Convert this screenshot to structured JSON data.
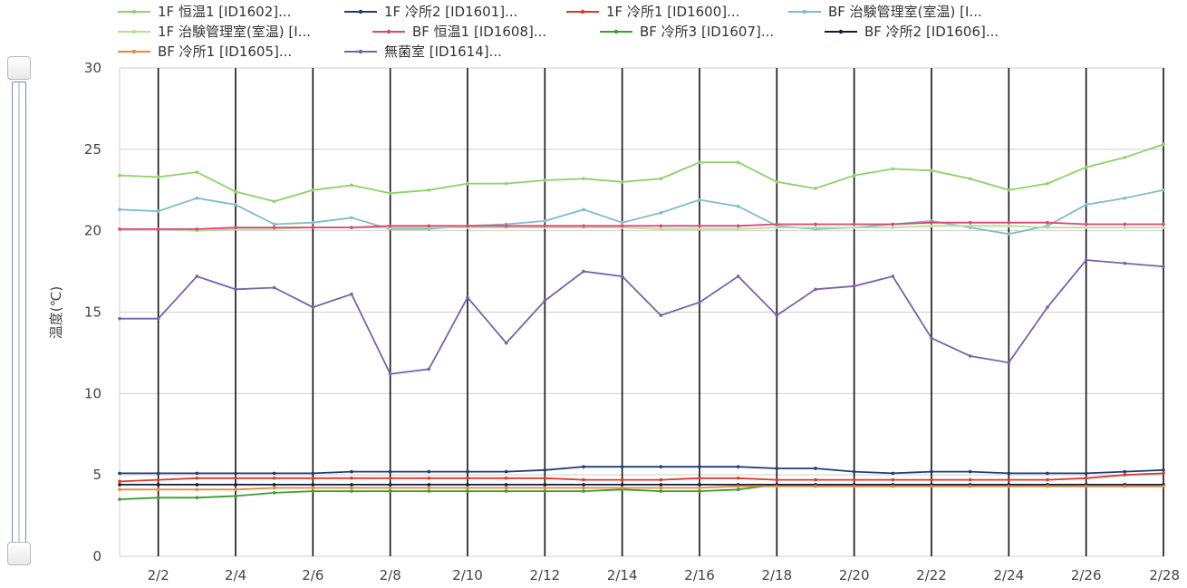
{
  "slider": {
    "start_fraction": 0,
    "end_fraction": 1
  },
  "chart_data": {
    "type": "line",
    "ylabel": "温度(℃)",
    "xlabel": "",
    "ylim": [
      0,
      30
    ],
    "yticks": [
      0,
      5,
      10,
      15,
      20,
      25,
      30
    ],
    "x": [
      "2/1",
      "2/2",
      "2/3",
      "2/4",
      "2/5",
      "2/6",
      "2/7",
      "2/8",
      "2/9",
      "2/10",
      "2/11",
      "2/12",
      "2/13",
      "2/14",
      "2/15",
      "2/16",
      "2/17",
      "2/18",
      "2/19",
      "2/20",
      "2/21",
      "2/22",
      "2/23",
      "2/24",
      "2/25",
      "2/26",
      "2/27",
      "2/28"
    ],
    "xtick_labels": [
      "2/2",
      "2/4",
      "2/6",
      "2/8",
      "2/10",
      "2/12",
      "2/14",
      "2/16",
      "2/18",
      "2/20",
      "2/22",
      "2/24",
      "2/26",
      "2/28"
    ],
    "grid": {
      "vertical": true,
      "horizontal": true
    },
    "legend": "top",
    "series": [
      {
        "name": "1F 恒温1 [ID1602]...",
        "color": "#8ed16a",
        "values": [
          23.4,
          23.3,
          23.6,
          22.4,
          21.8,
          22.5,
          22.8,
          22.3,
          22.5,
          22.9,
          22.9,
          23.1,
          23.2,
          23.0,
          23.2,
          24.2,
          24.2,
          23.0,
          22.6,
          23.4,
          23.8,
          23.7,
          23.2,
          22.5,
          22.9,
          23.9,
          24.5,
          25.3
        ]
      },
      {
        "name": "1F 冷所2 [ID1601]...",
        "color": "#1f3c7a",
        "values": [
          5.1,
          5.1,
          5.1,
          5.1,
          5.1,
          5.1,
          5.2,
          5.2,
          5.2,
          5.2,
          5.2,
          5.3,
          5.5,
          5.5,
          5.5,
          5.5,
          5.5,
          5.4,
          5.4,
          5.2,
          5.1,
          5.2,
          5.2,
          5.1,
          5.1,
          5.1,
          5.2,
          5.3
        ]
      },
      {
        "name": "1F 冷所1 [ID1600]...",
        "color": "#d93a2b",
        "values": [
          4.6,
          4.7,
          4.8,
          4.8,
          4.8,
          4.8,
          4.8,
          4.8,
          4.8,
          4.8,
          4.8,
          4.8,
          4.7,
          4.7,
          4.7,
          4.8,
          4.8,
          4.7,
          4.7,
          4.7,
          4.7,
          4.7,
          4.7,
          4.7,
          4.7,
          4.8,
          5.0,
          5.1
        ]
      },
      {
        "name": "BF 治験管理室(室温) [I...",
        "color": "#7fbcc8",
        "values": [
          21.3,
          21.2,
          22.0,
          21.6,
          20.4,
          20.5,
          20.8,
          20.1,
          20.1,
          20.3,
          20.4,
          20.6,
          21.3,
          20.5,
          21.1,
          21.9,
          21.5,
          20.3,
          20.1,
          20.2,
          20.4,
          20.6,
          20.2,
          19.8,
          20.3,
          21.6,
          22.0,
          22.5
        ]
      },
      {
        "name": "1F 治験管理室(室温) [I...",
        "color": "#b7e08f",
        "values": [
          20.1,
          20.1,
          20.0,
          20.1,
          20.1,
          20.2,
          20.2,
          20.2,
          20.2,
          20.2,
          20.2,
          20.2,
          20.2,
          20.2,
          20.1,
          20.1,
          20.1,
          20.2,
          20.2,
          20.2,
          20.2,
          20.3,
          20.3,
          20.3,
          20.2,
          20.2,
          20.2,
          20.2
        ]
      },
      {
        "name": "BF 恒温1 [ID1608]...",
        "color": "#e0427a",
        "values": [
          20.1,
          20.1,
          20.1,
          20.2,
          20.2,
          20.2,
          20.2,
          20.3,
          20.3,
          20.3,
          20.3,
          20.3,
          20.3,
          20.3,
          20.3,
          20.3,
          20.3,
          20.4,
          20.4,
          20.4,
          20.4,
          20.5,
          20.5,
          20.5,
          20.5,
          20.4,
          20.4,
          20.4
        ]
      },
      {
        "name": "BF 冷所3 [ID1607]...",
        "color": "#3a9e2c",
        "values": [
          3.5,
          3.6,
          3.6,
          3.7,
          3.9,
          4.0,
          4.0,
          4.0,
          4.0,
          4.0,
          4.0,
          4.0,
          4.0,
          4.1,
          4.0,
          4.0,
          4.1,
          4.4,
          4.3,
          4.3,
          4.3,
          4.3,
          4.3,
          4.3,
          4.3,
          4.3,
          4.3,
          4.3
        ]
      },
      {
        "name": "BF 冷所2 [ID1606]...",
        "color": "#101c3d",
        "values": [
          4.4,
          4.4,
          4.4,
          4.4,
          4.4,
          4.4,
          4.4,
          4.4,
          4.4,
          4.4,
          4.4,
          4.4,
          4.4,
          4.4,
          4.4,
          4.4,
          4.4,
          4.4,
          4.4,
          4.4,
          4.4,
          4.4,
          4.4,
          4.4,
          4.4,
          4.4,
          4.4,
          4.4
        ]
      },
      {
        "name": "BF 冷所1 [ID1605]...",
        "color": "#e58a3a",
        "values": [
          4.1,
          4.1,
          4.1,
          4.1,
          4.2,
          4.2,
          4.2,
          4.2,
          4.2,
          4.2,
          4.2,
          4.2,
          4.2,
          4.2,
          4.2,
          4.2,
          4.3,
          4.3,
          4.3,
          4.3,
          4.3,
          4.3,
          4.3,
          4.3,
          4.3,
          4.3,
          4.3,
          4.3
        ]
      },
      {
        "name": "無菌室 [ID1614]...",
        "color": "#7a62a8",
        "values": [
          14.6,
          14.6,
          17.2,
          16.4,
          16.5,
          15.3,
          16.1,
          11.2,
          11.5,
          15.9,
          13.1,
          15.7,
          17.5,
          17.2,
          14.8,
          15.6,
          17.2,
          14.8,
          16.4,
          16.6,
          17.2,
          13.4,
          12.3,
          11.9,
          15.3,
          18.2,
          18.0,
          17.8
        ]
      }
    ]
  }
}
